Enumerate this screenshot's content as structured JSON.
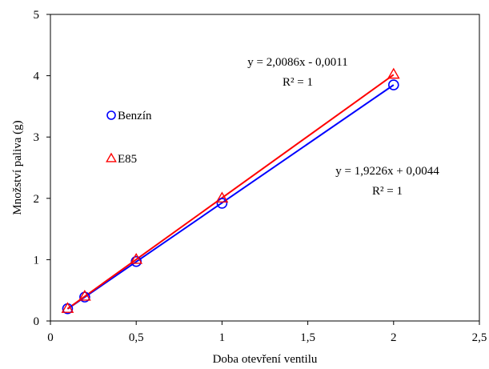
{
  "chart_data": {
    "type": "scatter",
    "xlabel": "Doba otevření ventilu",
    "ylabel": "Množství paliva (g)",
    "xlim": [
      0,
      2.5
    ],
    "ylim": [
      0,
      5
    ],
    "x_ticks": [
      "0",
      "0,5",
      "1",
      "1,5",
      "2",
      "2,5"
    ],
    "y_ticks": [
      "0",
      "1",
      "2",
      "3",
      "4",
      "5"
    ],
    "grid": false,
    "legend_position": "left",
    "series": [
      {
        "name": "Benzín",
        "marker": "circle",
        "color": "#0000ff",
        "points": [
          {
            "x": 0.1,
            "y": 0.2
          },
          {
            "x": 0.2,
            "y": 0.39
          },
          {
            "x": 0.5,
            "y": 0.97
          },
          {
            "x": 1.0,
            "y": 1.92
          },
          {
            "x": 2.0,
            "y": 3.85
          }
        ],
        "trend": {
          "slope": 1.9226,
          "intercept": 0.0044
        },
        "equation": "y = 1,9226x + 0,0044",
        "r2": "R² = 1"
      },
      {
        "name": "E85",
        "marker": "triangle",
        "color": "#ff0000",
        "points": [
          {
            "x": 0.1,
            "y": 0.2
          },
          {
            "x": 0.2,
            "y": 0.4
          },
          {
            "x": 0.5,
            "y": 1.0
          },
          {
            "x": 1.0,
            "y": 2.0
          },
          {
            "x": 2.0,
            "y": 4.02
          }
        ],
        "trend": {
          "slope": 2.0086,
          "intercept": -0.0011
        },
        "equation": "y = 2,0086x - 0,0011",
        "r2": "R² = 1"
      }
    ]
  }
}
